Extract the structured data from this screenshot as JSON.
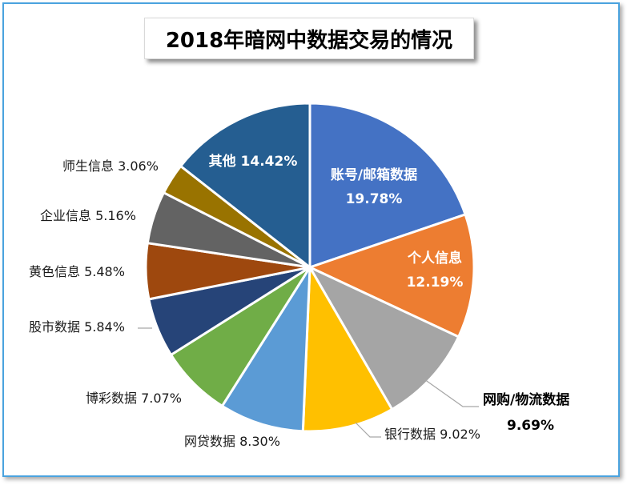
{
  "chart_data": {
    "type": "pie",
    "title": "2018年暗网中数据交易的情况",
    "slices": [
      {
        "name": "账号/邮箱数据",
        "pct_label": "19.78%",
        "value": 19.78,
        "color": "#4472c4",
        "label_style": "inside"
      },
      {
        "name": "个人信息",
        "pct_label": "12.19%",
        "value": 12.19,
        "color": "#ed7d31",
        "label_style": "inside"
      },
      {
        "name": "网购/物流数据",
        "pct_label": "9.69%",
        "value": 9.69,
        "color": "#a5a5a5",
        "label_style": "outside-bold"
      },
      {
        "name": "银行数据",
        "pct_label": "9.02%",
        "value": 9.02,
        "color": "#ffc000",
        "label_style": "outside"
      },
      {
        "name": "网贷数据",
        "pct_label": "8.30%",
        "value": 8.3,
        "color": "#5b9bd5",
        "label_style": "outside"
      },
      {
        "name": "博彩数据",
        "pct_label": "7.07%",
        "value": 7.07,
        "color": "#70ad47",
        "label_style": "outside"
      },
      {
        "name": "股市数据",
        "pct_label": "5.84%",
        "value": 5.84,
        "color": "#264478",
        "label_style": "outside"
      },
      {
        "name": "黄色信息",
        "pct_label": "5.48%",
        "value": 5.48,
        "color": "#9e480e",
        "label_style": "outside"
      },
      {
        "name": "企业信息",
        "pct_label": "5.16%",
        "value": 5.16,
        "color": "#636363",
        "label_style": "outside"
      },
      {
        "name": "师生信息",
        "pct_label": "3.06%",
        "value": 3.06,
        "color": "#997300",
        "label_style": "outside"
      },
      {
        "name": "其他",
        "pct_label": "14.42%",
        "value": 14.42,
        "color": "#255e91",
        "label_style": "inside"
      }
    ]
  }
}
